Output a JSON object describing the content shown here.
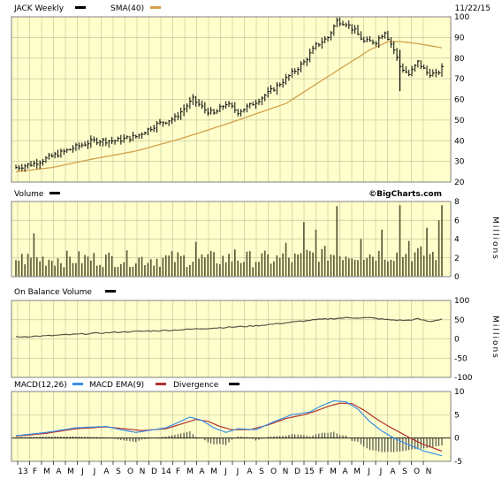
{
  "header": {
    "ticker_label": "JACK Weekly",
    "sma_label": "SMA(40)",
    "date": "11/22/15"
  },
  "watermark": "©BigCharts.com",
  "colors": {
    "panel_bg": "#ffffcc",
    "grid": "#c8c8a0",
    "price_bar": "#000000",
    "sma": "#d2a04a",
    "volume_bar": "#555533",
    "obv_line": "#555544",
    "macd": "#3a8ee6",
    "ema": "#b03030",
    "divergence": "#333333",
    "frame": "#808080"
  },
  "x_axis": {
    "labels": [
      "13",
      "F",
      "M",
      "A",
      "M",
      "J",
      "J",
      "A",
      "S",
      "O",
      "N",
      "D",
      "14",
      "F",
      "M",
      "A",
      "M",
      "J",
      "J",
      "A",
      "S",
      "O",
      "N",
      "D",
      "15",
      "F",
      "M",
      "A",
      "M",
      "J",
      "J",
      "A",
      "S",
      "O",
      "N"
    ]
  },
  "chart_data": [
    {
      "type": "ohlc",
      "panel": "price",
      "title": "JACK Weekly",
      "legend": [
        "JACK Weekly",
        "SMA(40)"
      ],
      "ylim": [
        20,
        100
      ],
      "yticks": [
        20,
        30,
        40,
        50,
        60,
        70,
        80,
        90,
        100
      ],
      "grid": true,
      "anchors": [
        [
          0,
          27
        ],
        [
          6,
          29
        ],
        [
          13,
          33
        ],
        [
          20,
          37
        ],
        [
          26,
          40
        ],
        [
          33,
          40
        ],
        [
          40,
          42
        ],
        [
          47,
          48
        ],
        [
          53,
          51
        ],
        [
          59,
          60
        ],
        [
          63,
          55
        ],
        [
          66,
          53
        ],
        [
          70,
          58
        ],
        [
          74,
          54
        ],
        [
          78,
          57
        ],
        [
          84,
          63
        ],
        [
          90,
          70
        ],
        [
          96,
          78
        ],
        [
          100,
          86
        ],
        [
          104,
          90
        ],
        [
          107,
          98
        ],
        [
          110,
          97
        ],
        [
          113,
          93
        ],
        [
          116,
          88
        ],
        [
          120,
          88
        ],
        [
          123,
          93
        ],
        [
          126,
          84
        ],
        [
          128,
          76
        ],
        [
          131,
          72
        ],
        [
          134,
          78
        ],
        [
          137,
          73
        ],
        [
          140,
          72
        ],
        [
          142,
          75
        ]
      ],
      "sma_anchors": [
        [
          0,
          25
        ],
        [
          12,
          27
        ],
        [
          25,
          31
        ],
        [
          40,
          35
        ],
        [
          55,
          41
        ],
        [
          70,
          48
        ],
        [
          90,
          58
        ],
        [
          105,
          72
        ],
        [
          118,
          84
        ],
        [
          124,
          88
        ],
        [
          128,
          88
        ],
        [
          134,
          87
        ],
        [
          142,
          85
        ]
      ]
    },
    {
      "type": "bar",
      "panel": "volume",
      "title": "Volume",
      "ylabel": "Millions",
      "ylim": [
        0,
        8
      ],
      "yticks": [
        0,
        2,
        4,
        6,
        8
      ],
      "grid": true
    },
    {
      "type": "line",
      "panel": "obv",
      "title": "On Balance Volume",
      "ylabel": "Millions",
      "ylim": [
        -100,
        100
      ],
      "yticks": [
        -100,
        -50,
        0,
        50,
        100
      ],
      "grid": true,
      "anchors": [
        [
          0,
          5
        ],
        [
          10,
          8
        ],
        [
          20,
          12
        ],
        [
          35,
          18
        ],
        [
          50,
          22
        ],
        [
          65,
          28
        ],
        [
          80,
          34
        ],
        [
          90,
          42
        ],
        [
          100,
          50
        ],
        [
          110,
          55
        ],
        [
          118,
          55
        ],
        [
          124,
          50
        ],
        [
          130,
          48
        ],
        [
          134,
          52
        ],
        [
          138,
          45
        ],
        [
          142,
          52
        ]
      ]
    },
    {
      "type": "line",
      "panel": "macd",
      "title": "MACD(12,26)",
      "legend": [
        "MACD(12,26)",
        "MACD EMA(9)",
        "Divergence"
      ],
      "ylim": [
        -5,
        10
      ],
      "yticks": [
        -5,
        0,
        5,
        10
      ],
      "grid": true,
      "macd_anchors": [
        [
          0,
          0.5
        ],
        [
          10,
          1.2
        ],
        [
          20,
          2.2
        ],
        [
          30,
          2.5
        ],
        [
          35,
          1.8
        ],
        [
          40,
          1.2
        ],
        [
          50,
          2.2
        ],
        [
          55,
          3.6
        ],
        [
          58,
          4.5
        ],
        [
          62,
          3.8
        ],
        [
          66,
          2.2
        ],
        [
          70,
          1.2
        ],
        [
          74,
          2.0
        ],
        [
          80,
          1.8
        ],
        [
          86,
          3.5
        ],
        [
          92,
          5.0
        ],
        [
          98,
          5.6
        ],
        [
          102,
          7.0
        ],
        [
          106,
          8.0
        ],
        [
          110,
          7.8
        ],
        [
          114,
          6.2
        ],
        [
          118,
          3.5
        ],
        [
          122,
          1.5
        ],
        [
          126,
          0.0
        ],
        [
          130,
          -1.2
        ],
        [
          136,
          -2.8
        ],
        [
          142,
          -3.8
        ]
      ],
      "ema_anchors": [
        [
          0,
          0.4
        ],
        [
          10,
          1.0
        ],
        [
          20,
          2.0
        ],
        [
          30,
          2.4
        ],
        [
          36,
          2.0
        ],
        [
          42,
          1.6
        ],
        [
          50,
          2.0
        ],
        [
          56,
          3.2
        ],
        [
          60,
          4.0
        ],
        [
          64,
          3.6
        ],
        [
          68,
          2.5
        ],
        [
          72,
          1.8
        ],
        [
          78,
          1.8
        ],
        [
          84,
          2.8
        ],
        [
          90,
          4.2
        ],
        [
          96,
          5.0
        ],
        [
          100,
          5.8
        ],
        [
          104,
          6.8
        ],
        [
          108,
          7.5
        ],
        [
          112,
          7.4
        ],
        [
          116,
          6.0
        ],
        [
          120,
          4.2
        ],
        [
          124,
          2.6
        ],
        [
          128,
          1.2
        ],
        [
          132,
          -0.2
        ],
        [
          136,
          -1.4
        ],
        [
          142,
          -2.8
        ]
      ]
    }
  ]
}
